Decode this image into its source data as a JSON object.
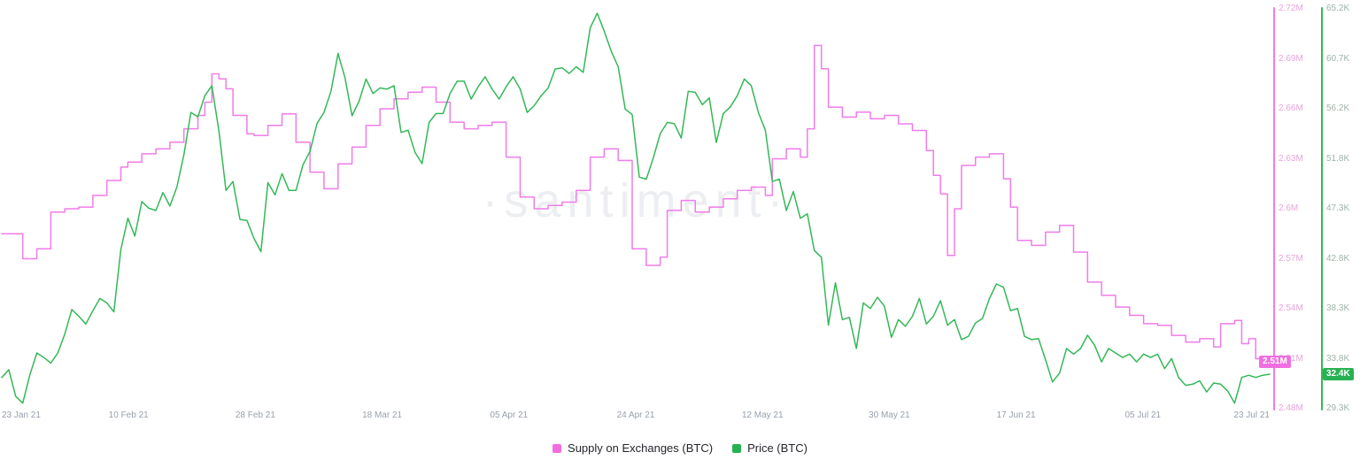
{
  "watermark": "·santiment·",
  "colors": {
    "supply_line": "#f07ce8",
    "price_line": "#34b857",
    "left_tick_text": "#e9a3dc",
    "right_tick_text": "#9fb3a8",
    "date_text": "#97a0ad",
    "watermark": "#eceef2",
    "badge_text": "#ffffff"
  },
  "x_axis": {
    "labels": [
      "23 Jan 21",
      "10 Feb 21",
      "28 Feb 21",
      "18 Mar 21",
      "05 Apr 21",
      "24 Apr 21",
      "12 May 21",
      "30 May 21",
      "17 Jun 21",
      "05 Jul 21",
      "23 Jul 21"
    ]
  },
  "y_axis_left": {
    "ticks": [
      "2.72M",
      "2.69M",
      "2.66M",
      "2.63M",
      "2.6M",
      "2.57M",
      "2.54M",
      "2.51M",
      "2.48M"
    ],
    "current_badge": "2.51M"
  },
  "y_axis_right": {
    "ticks": [
      "65.2K",
      "60.7K",
      "56.2K",
      "51.8K",
      "47.3K",
      "42.8K",
      "38.3K",
      "33.8K",
      "29.3K"
    ],
    "current_badge": "32.4K"
  },
  "legend": [
    {
      "label": "Supply on Exchanges (BTC)",
      "color": "#f06ee0"
    },
    {
      "label": "Price (BTC)",
      "color": "#28b152"
    }
  ],
  "chart_data": {
    "type": "line",
    "x_range_days": [
      0,
      181
    ],
    "x_tick_labels": [
      "23 Jan 21",
      "10 Feb 21",
      "28 Feb 21",
      "18 Mar 21",
      "05 Apr 21",
      "24 Apr 21",
      "12 May 21",
      "30 May 21",
      "17 Jun 21",
      "05 Jul 21",
      "23 Jul 21"
    ],
    "left_axis": {
      "label": "Supply on Exchanges (BTC)",
      "unit": "M BTC",
      "range": [
        2.48,
        2.72
      ]
    },
    "right_axis": {
      "label": "Price (BTC)",
      "unit": "K USD",
      "range": [
        29.3,
        65.2
      ]
    },
    "current_values": {
      "supply": "2.51M",
      "price": "32.4K"
    },
    "series": [
      {
        "name": "Supply on Exchanges (BTC)",
        "axis": "left",
        "style": "step",
        "color": "#f07ce8",
        "path_name": "supply-line-path",
        "x_days": [
          0,
          2,
          3,
          5,
          7,
          9,
          11,
          13,
          15,
          17,
          18,
          20,
          22,
          24,
          26,
          28,
          29,
          30,
          31,
          32,
          33,
          35,
          36,
          38,
          40,
          42,
          44,
          46,
          48,
          50,
          52,
          54,
          56,
          58,
          60,
          62,
          64,
          66,
          68,
          70,
          72,
          74,
          76,
          78,
          80,
          82,
          84,
          86,
          88,
          90,
          92,
          94,
          95,
          97,
          99,
          101,
          103,
          105,
          107,
          109,
          110,
          112,
          114,
          115,
          116,
          117,
          118,
          120,
          122,
          124,
          126,
          128,
          130,
          132,
          133,
          134,
          135,
          136,
          137,
          139,
          141,
          143,
          144,
          145,
          147,
          149,
          151,
          153,
          155,
          157,
          159,
          161,
          163,
          165,
          167,
          169,
          171,
          173,
          174,
          176,
          177,
          178,
          179,
          181
        ],
        "values": [
          2.585,
          2.585,
          2.57,
          2.576,
          2.598,
          2.6,
          2.601,
          2.608,
          2.617,
          2.625,
          2.628,
          2.633,
          2.636,
          2.64,
          2.648,
          2.656,
          2.664,
          2.681,
          2.678,
          2.672,
          2.656,
          2.645,
          2.644,
          2.65,
          2.657,
          2.64,
          2.622,
          2.612,
          2.627,
          2.637,
          2.65,
          2.66,
          2.666,
          2.67,
          2.673,
          2.664,
          2.652,
          2.648,
          2.65,
          2.652,
          2.631,
          2.607,
          2.6,
          2.602,
          2.604,
          2.611,
          2.631,
          2.636,
          2.629,
          2.576,
          2.566,
          2.571,
          2.599,
          2.605,
          2.598,
          2.601,
          2.606,
          2.611,
          2.613,
          2.608,
          2.63,
          2.636,
          2.631,
          2.648,
          2.698,
          2.684,
          2.661,
          2.655,
          2.658,
          2.654,
          2.656,
          2.651,
          2.647,
          2.635,
          2.62,
          2.609,
          2.572,
          2.6,
          2.626,
          2.631,
          2.633,
          2.618,
          2.601,
          2.581,
          2.578,
          2.586,
          2.59,
          2.574,
          2.556,
          2.548,
          2.541,
          2.536,
          2.531,
          2.53,
          2.524,
          2.52,
          2.522,
          2.517,
          2.531,
          2.533,
          2.519,
          2.522,
          2.51,
          2.508
        ]
      },
      {
        "name": "Price (BTC)",
        "axis": "right",
        "style": "linear",
        "color": "#34b857",
        "path_name": "price-line-path",
        "values": [
          32.1,
          32.8,
          30.4,
          29.8,
          32.3,
          34.3,
          33.9,
          33.4,
          34.3,
          36.0,
          38.2,
          37.6,
          36.9,
          38.1,
          39.2,
          38.8,
          38.0,
          43.6,
          46.4,
          44.8,
          47.9,
          47.3,
          47.1,
          48.7,
          47.5,
          49.2,
          52.1,
          55.9,
          55.5,
          57.4,
          58.3,
          54.2,
          48.9,
          49.7,
          46.3,
          46.2,
          44.6,
          43.4,
          49.6,
          48.5,
          50.4,
          48.9,
          48.9,
          51.2,
          52.4,
          54.9,
          55.9,
          57.8,
          61.2,
          59.0,
          55.6,
          56.9,
          58.9,
          57.6,
          58.1,
          58.0,
          58.3,
          54.1,
          54.3,
          52.3,
          51.3,
          55.0,
          55.8,
          55.8,
          57.6,
          58.7,
          58.7,
          57.1,
          58.2,
          59.1,
          58.0,
          57.1,
          58.2,
          59.1,
          58.0,
          55.9,
          56.5,
          57.4,
          58.1,
          59.8,
          59.9,
          59.4,
          60.0,
          59.5,
          63.5,
          64.8,
          63.2,
          61.4,
          60.0,
          56.2,
          55.7,
          50.1,
          49.9,
          51.8,
          54.0,
          55.0,
          54.9,
          53.6,
          57.8,
          57.7,
          56.6,
          57.2,
          53.2,
          55.8,
          56.4,
          57.4,
          58.9,
          58.3,
          55.9,
          54.3,
          49.7,
          49.9,
          47.1,
          48.8,
          46.4,
          46.8,
          43.5,
          42.9,
          36.8,
          40.6,
          37.3,
          37.5,
          34.7,
          38.8,
          38.3,
          39.3,
          38.5,
          35.7,
          37.3,
          36.7,
          37.6,
          39.2,
          36.9,
          37.6,
          39.0,
          36.8,
          37.3,
          35.5,
          35.8,
          37.0,
          37.4,
          39.2,
          40.5,
          40.2,
          38.1,
          38.3,
          35.8,
          35.5,
          35.6,
          33.7,
          31.7,
          32.5,
          34.7,
          34.2,
          34.7,
          35.9,
          35.0,
          33.5,
          34.7,
          34.3,
          33.9,
          34.2,
          33.5,
          34.2,
          33.9,
          34.2,
          32.9,
          33.8,
          32.1,
          31.4,
          31.5,
          31.8,
          30.8,
          31.6,
          31.5,
          30.9,
          29.8,
          32.1,
          32.3,
          32.1,
          32.3,
          32.4
        ]
      }
    ]
  }
}
